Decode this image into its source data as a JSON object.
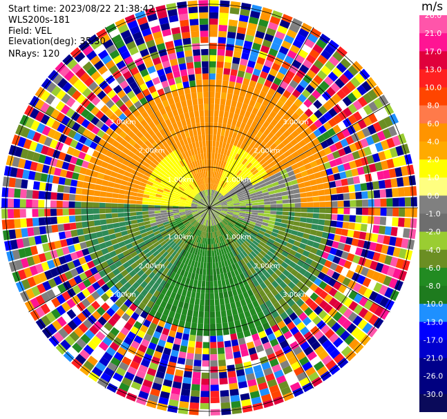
{
  "header": {
    "start_time": "Start time: 2023/08/22 21:38:42",
    "instrument": "WLS200s-181",
    "field": "Field: VEL",
    "elevation": "Elevation(deg): 35.30",
    "nrays": "NRays: 120"
  },
  "ppi": {
    "ring_labels": {
      "r1": "1.00km",
      "r2": "2.00km",
      "r3": "3.00km"
    },
    "nrays": 120
  },
  "colorbar": {
    "unit": "m/s",
    "ticks": [
      "26.0",
      "21.0",
      "17.0",
      "13.0",
      "10.0",
      "8.0",
      "6.0",
      "4.0",
      "2.0",
      "1.0",
      "0.0",
      "-1.0",
      "-2.0",
      "-4.0",
      "-6.0",
      "-8.0",
      "-10.0",
      "-13.0",
      "-17.0",
      "-21.0",
      "-26.0",
      "-30.0"
    ],
    "colors": [
      "#ff55aa",
      "#ff1493",
      "#e0003c",
      "#ff2020",
      "#ff4500",
      "#ff7a4a",
      "#ff9400",
      "#ffaa00",
      "#ffff00",
      "#ffff80",
      "#808080",
      "#6e6e6e",
      "#9acd32",
      "#6b8e23",
      "#228b22",
      "#1e7b1e",
      "#1e90ff",
      "#0000ff",
      "#0000cd",
      "#00008b",
      "#000080",
      "#0a0a5a"
    ]
  }
}
